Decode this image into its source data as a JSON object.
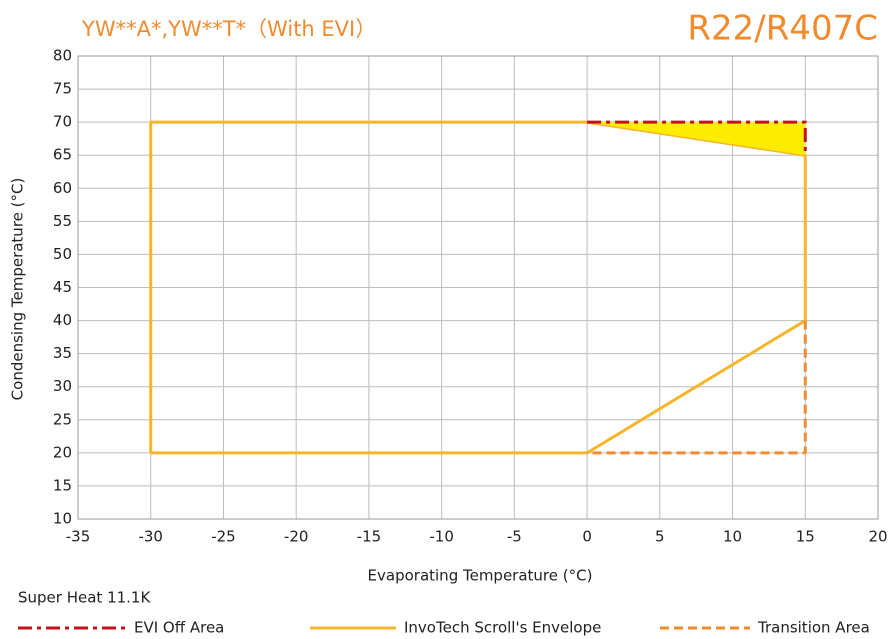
{
  "chart_data": {
    "type": "line",
    "title": "YW**A*,YW**T*（With EVI）",
    "subtitle": "R22/R407C",
    "x_label": "Evaporating Temperature (°C)",
    "y_label": "Condensing Temperature (°C)",
    "note": "Super Heat 11.1K",
    "title_color": "#f28a2e",
    "xlim": [
      -35,
      20
    ],
    "xticks": [
      -35,
      -30,
      -25,
      -20,
      -15,
      -10,
      -5,
      0,
      5,
      10,
      15,
      20
    ],
    "ylim": [
      10,
      80
    ],
    "yticks": [
      10,
      15,
      20,
      25,
      30,
      35,
      40,
      45,
      50,
      55,
      60,
      65,
      70,
      75,
      80
    ],
    "grid": true,
    "legend": "bottom",
    "series": [
      {
        "name": "EVI Off Area",
        "color": "#c0141c",
        "dash": "dashdot",
        "fill": "#ffed00",
        "x": [
          0,
          15,
          15
        ],
        "values": [
          70,
          70,
          65
        ]
      },
      {
        "name": "InvoTech Scroll's Envelope",
        "color": "#f7b52a",
        "dash": "solid",
        "x": [
          -30,
          -30,
          0,
          15,
          15,
          0,
          -30
        ],
        "values": [
          20,
          70,
          70,
          65,
          40,
          20,
          20
        ]
      },
      {
        "name": "Transition Area",
        "color": "#f28a2e",
        "dash": "dashed",
        "x": [
          15,
          15,
          0
        ],
        "values": [
          40,
          20,
          20
        ]
      }
    ]
  }
}
